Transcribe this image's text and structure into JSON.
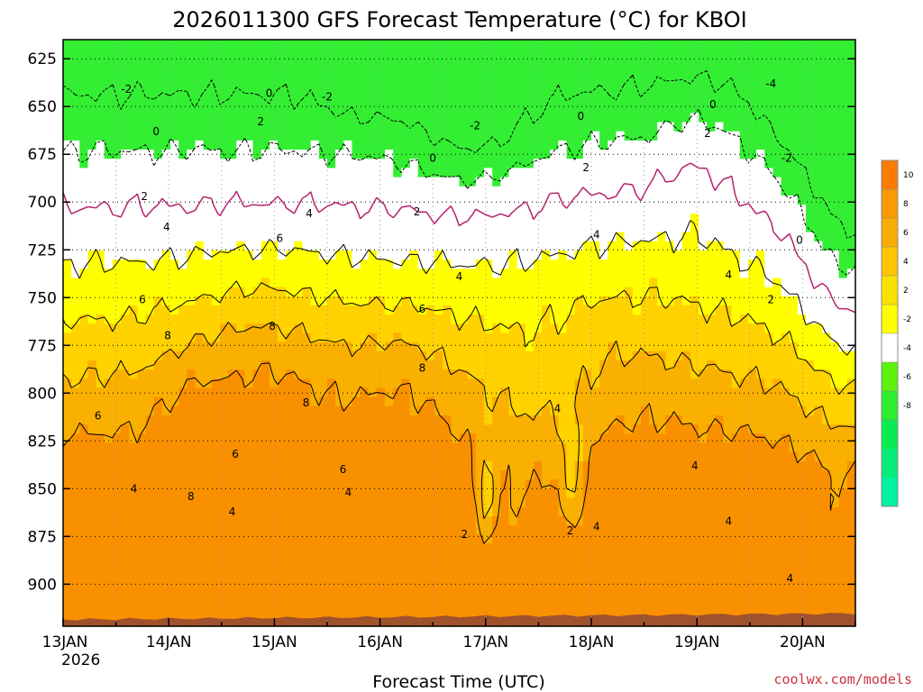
{
  "chart_data": {
    "type": "heatmap",
    "title": "2026011300 GFS Forecast Temperature (°C) for KBOI",
    "xlabel": "Forecast Time (UTC)",
    "ylabel": "",
    "credit": "coolwx.com/models",
    "x_ticks": [
      {
        "label": "13JAN",
        "sublabel": "2026",
        "day": 0
      },
      {
        "label": "14JAN",
        "day": 1
      },
      {
        "label": "15JAN",
        "day": 2
      },
      {
        "label": "16JAN",
        "day": 3
      },
      {
        "label": "17JAN",
        "day": 4
      },
      {
        "label": "18JAN",
        "day": 5
      },
      {
        "label": "19JAN",
        "day": 6
      },
      {
        "label": "20JAN",
        "day": 7
      }
    ],
    "xlim_days": [
      0,
      7.5
    ],
    "y_ticks": [
      625,
      650,
      675,
      700,
      725,
      750,
      775,
      800,
      825,
      850,
      875,
      900
    ],
    "ylim": [
      615,
      922
    ],
    "grid": true,
    "colorbar": {
      "labels": [
        "10",
        "8",
        "6",
        "4",
        "2",
        "-2",
        "-4",
        "-6",
        "-8"
      ],
      "bins": [
        {
          "color": "#fb7c00"
        },
        {
          "color": "#f99a00"
        },
        {
          "color": "#f8ac00"
        },
        {
          "color": "#fdc500"
        },
        {
          "color": "#fbe100"
        },
        {
          "color": "#ffff00"
        },
        {
          "color": "#ffffff"
        },
        {
          "color": "#5cf20e"
        },
        {
          "color": "#2bef2c"
        },
        {
          "color": "#08ec52"
        },
        {
          "color": "#05ec7a"
        },
        {
          "color": "#00f2a2"
        }
      ]
    },
    "colors": {
      "c_le_-2": "#33ee33",
      "c_-2_0": "#ffffff",
      "c_0_2": "#ffffff",
      "c_2_4": "#ffff00",
      "c_4_6": "#ffd200",
      "c_6_8": "#fab000",
      "c_ge_8": "#f99000",
      "ground": "#a0522d",
      "zero_line": "#b5226e"
    },
    "contour_labels": [
      {
        "text": "-2",
        "day": 0.6,
        "p": 641
      },
      {
        "text": "-2",
        "day": 2.5,
        "p": 645
      },
      {
        "text": "-2",
        "day": 3.9,
        "p": 660
      },
      {
        "text": "-4",
        "day": 6.7,
        "p": 638
      },
      {
        "text": "-2",
        "day": 6.85,
        "p": 677
      },
      {
        "text": "0",
        "day": 0.88,
        "p": 663
      },
      {
        "text": "0",
        "day": 1.95,
        "p": 643
      },
      {
        "text": "0",
        "day": 3.5,
        "p": 677
      },
      {
        "text": "0",
        "day": 4.9,
        "p": 655
      },
      {
        "text": "0",
        "day": 6.15,
        "p": 649
      },
      {
        "text": "0",
        "day": 6.97,
        "p": 720
      },
      {
        "text": "2",
        "day": 0.77,
        "p": 697
      },
      {
        "text": "2",
        "day": 1.87,
        "p": 658
      },
      {
        "text": "2",
        "day": 3.35,
        "p": 705
      },
      {
        "text": "2",
        "day": 4.95,
        "p": 682
      },
      {
        "text": "2",
        "day": 6.1,
        "p": 664
      },
      {
        "text": "2",
        "day": 6.7,
        "p": 751
      },
      {
        "text": "2",
        "day": 3.8,
        "p": 874
      },
      {
        "text": "2",
        "day": 4.8,
        "p": 872
      },
      {
        "text": "4",
        "day": 0.98,
        "p": 713
      },
      {
        "text": "4",
        "day": 2.33,
        "p": 706
      },
      {
        "text": "4",
        "day": 3.75,
        "p": 739
      },
      {
        "text": "4",
        "day": 5.05,
        "p": 717
      },
      {
        "text": "4",
        "day": 6.3,
        "p": 738
      },
      {
        "text": "4",
        "day": 0.67,
        "p": 850
      },
      {
        "text": "4",
        "day": 1.6,
        "p": 862
      },
      {
        "text": "4",
        "day": 2.7,
        "p": 852
      },
      {
        "text": "4",
        "day": 4.68,
        "p": 808
      },
      {
        "text": "4",
        "day": 5.05,
        "p": 870
      },
      {
        "text": "4",
        "day": 5.98,
        "p": 838
      },
      {
        "text": "4",
        "day": 6.3,
        "p": 867
      },
      {
        "text": "4",
        "day": 6.88,
        "p": 897
      },
      {
        "text": "6",
        "day": 2.05,
        "p": 719
      },
      {
        "text": "6",
        "day": 0.75,
        "p": 751
      },
      {
        "text": "6",
        "day": 3.4,
        "p": 756
      },
      {
        "text": "6",
        "day": 0.33,
        "p": 812
      },
      {
        "text": "6",
        "day": 1.63,
        "p": 832
      },
      {
        "text": "6",
        "day": 2.65,
        "p": 840
      },
      {
        "text": "8",
        "day": 0.99,
        "p": 770
      },
      {
        "text": "8",
        "day": 1.98,
        "p": 765
      },
      {
        "text": "8",
        "day": 2.3,
        "p": 805
      },
      {
        "text": "8",
        "day": 3.4,
        "p": 787
      },
      {
        "text": "8",
        "day": 1.21,
        "p": 854
      }
    ]
  }
}
